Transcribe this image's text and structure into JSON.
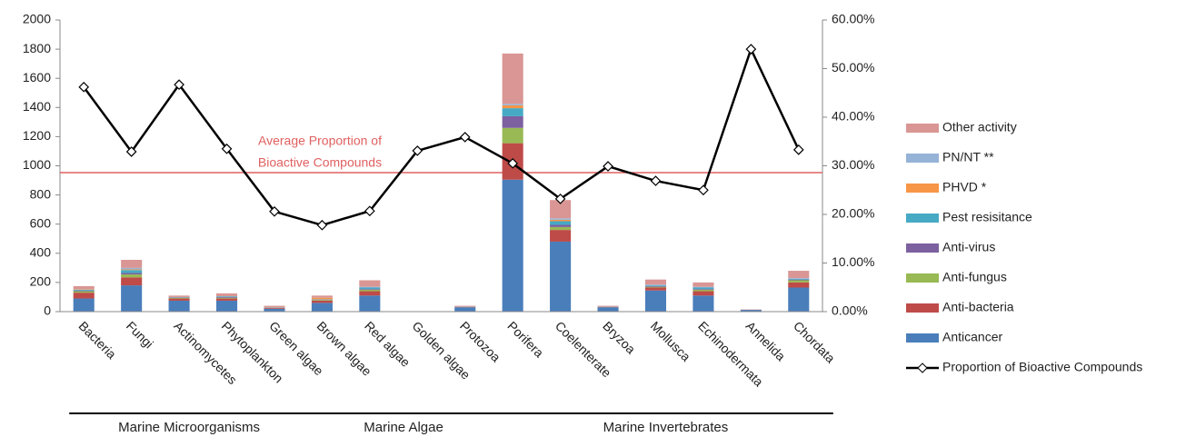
{
  "chart_data": {
    "type": "bar",
    "stacked": true,
    "categories": [
      "Bacteria",
      "Fungi",
      "Actinomycetes",
      "Phytoplankton",
      "Green algae",
      "Brown algae",
      "Red algae",
      "Golden algae",
      "Protozoa",
      "Porifera",
      "Coelenterate",
      "Bryzoa",
      "Mollusca",
      "Echinodermata",
      "Annelida",
      "Chordata"
    ],
    "series": [
      {
        "name": "Anticancer",
        "color": "#4a7ebb",
        "values": [
          90,
          180,
          75,
          75,
          20,
          60,
          110,
          0,
          30,
          905,
          480,
          30,
          145,
          110,
          12,
          165
        ]
      },
      {
        "name": "Anti-bacteria",
        "color": "#be4b48",
        "values": [
          40,
          55,
          15,
          15,
          5,
          15,
          30,
          0,
          2,
          250,
          80,
          3,
          20,
          30,
          1,
          35
        ]
      },
      {
        "name": "Anti-fungus",
        "color": "#98b954",
        "values": [
          10,
          20,
          5,
          5,
          2,
          5,
          10,
          0,
          1,
          105,
          20,
          1,
          5,
          10,
          0,
          15
        ]
      },
      {
        "name": "Anti-virus",
        "color": "#7d60a0",
        "values": [
          5,
          10,
          3,
          5,
          2,
          3,
          5,
          0,
          1,
          80,
          15,
          1,
          5,
          5,
          0,
          5
        ]
      },
      {
        "name": "Pest resisitance",
        "color": "#46aac5",
        "values": [
          5,
          20,
          2,
          5,
          1,
          2,
          10,
          0,
          1,
          55,
          25,
          1,
          5,
          10,
          0,
          5
        ]
      },
      {
        "name": "PHVD *",
        "color": "#f79646",
        "values": [
          3,
          5,
          0,
          0,
          0,
          10,
          0,
          0,
          0,
          20,
          10,
          0,
          0,
          0,
          0,
          0
        ]
      },
      {
        "name": "PN/NT **",
        "color": "#95b3d7",
        "values": [
          2,
          10,
          0,
          0,
          0,
          0,
          5,
          0,
          0,
          10,
          10,
          0,
          5,
          5,
          0,
          5
        ]
      },
      {
        "name": "Other activity",
        "color": "#d99694",
        "values": [
          20,
          55,
          10,
          20,
          10,
          15,
          45,
          0,
          5,
          345,
          125,
          4,
          35,
          30,
          2,
          50
        ]
      },
      {
        "name": "Proportion of Bioactive Compounds",
        "type": "line",
        "axis": "y2",
        "color": "#000000",
        "values": [
          46.2,
          32.9,
          46.7,
          33.5,
          20.6,
          17.8,
          20.7,
          33.1,
          35.9,
          30.5,
          23.2,
          29.9,
          26.9,
          25.0,
          54.0,
          33.3
        ]
      }
    ],
    "ylim": [
      0,
      2000
    ],
    "yticks": [
      0,
      200,
      400,
      600,
      800,
      1000,
      1200,
      1400,
      1600,
      1800,
      2000
    ],
    "y2lim": [
      0,
      60
    ],
    "y2ticks": [
      {
        "value": 0,
        "label": "0.00%"
      },
      {
        "value": 10,
        "label": "10.00%"
      },
      {
        "value": 20,
        "label": "20.00%"
      },
      {
        "value": 30,
        "label": "30.00%"
      },
      {
        "value": 40,
        "label": "40.00%"
      },
      {
        "value": 50,
        "label": "50.00%"
      },
      {
        "value": 60,
        "label": "60.00%"
      }
    ],
    "reference_line": {
      "value": 28.6,
      "axis": "y2",
      "color": "#e06060",
      "label": [
        "Average Proportion of",
        "Bioactive Compounds"
      ]
    },
    "groups": [
      {
        "label": "Marine Microorganisms",
        "first": 0,
        "last": 4
      },
      {
        "label": "Marine Algae",
        "first": 5,
        "last": 8
      },
      {
        "label": "Marine Invertebrates",
        "first": 9,
        "last": 15
      }
    ],
    "legend": "right"
  }
}
